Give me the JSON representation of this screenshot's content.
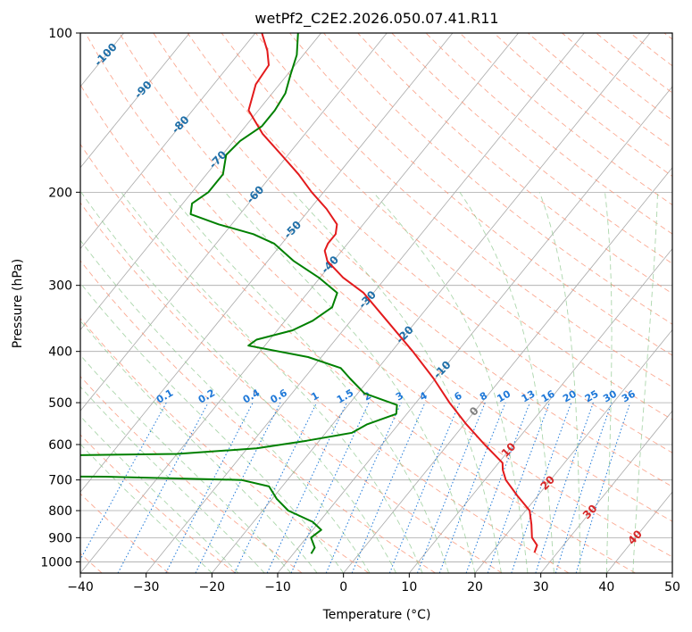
{
  "chart_data": {
    "type": "line",
    "subtype": "skew-t log-p diagram",
    "title": "wetPf2_C2E2.2026.050.07.41.R11",
    "xlabel": "Temperature (°C)",
    "ylabel": "Pressure (hPa)",
    "xlim": [
      -40,
      50
    ],
    "ylim": [
      1050,
      100
    ],
    "y_scale": "log",
    "x_ticks": [
      -40,
      -30,
      -20,
      -10,
      0,
      10,
      20,
      30,
      40,
      50
    ],
    "y_ticks": [
      100,
      200,
      300,
      400,
      500,
      600,
      700,
      800,
      900,
      1000
    ],
    "grid": true,
    "series": [
      {
        "name": "",
        "role": "temperature",
        "color": "#e31a1c",
        "points": [
          {
            "p": 960,
            "t": 26.5
          },
          {
            "p": 930,
            "t": 26.0
          },
          {
            "p": 900,
            "t": 24.3
          },
          {
            "p": 850,
            "t": 22.6
          },
          {
            "p": 800,
            "t": 20.6
          },
          {
            "p": 750,
            "t": 16.9
          },
          {
            "p": 700,
            "t": 13.2
          },
          {
            "p": 670,
            "t": 11.5
          },
          {
            "p": 650,
            "t": 10.6
          },
          {
            "p": 600,
            "t": 5.6
          },
          {
            "p": 550,
            "t": 0.4
          },
          {
            "p": 500,
            "t": -4.9
          },
          {
            "p": 450,
            "t": -10.3
          },
          {
            "p": 400,
            "t": -16.8
          },
          {
            "p": 350,
            "t": -24.5
          },
          {
            "p": 310,
            "t": -31.5
          },
          {
            "p": 290,
            "t": -36.5
          },
          {
            "p": 270,
            "t": -40.9
          },
          {
            "p": 258,
            "t": -42.6
          },
          {
            "p": 250,
            "t": -43.0
          },
          {
            "p": 240,
            "t": -43.0
          },
          {
            "p": 230,
            "t": -44.0
          },
          {
            "p": 215,
            "t": -47.5
          },
          {
            "p": 200,
            "t": -51.8
          },
          {
            "p": 185,
            "t": -56.0
          },
          {
            "p": 170,
            "t": -61.0
          },
          {
            "p": 155,
            "t": -66.5
          },
          {
            "p": 140,
            "t": -71.5
          },
          {
            "p": 125,
            "t": -73.6
          },
          {
            "p": 115,
            "t": -74.0
          },
          {
            "p": 108,
            "t": -76.0
          },
          {
            "p": 100,
            "t": -79.0
          }
        ]
      },
      {
        "name": "",
        "role": "dewpoint",
        "color": "#008000",
        "points": [
          {
            "p": 965,
            "t": -7.3
          },
          {
            "p": 940,
            "t": -7.5
          },
          {
            "p": 900,
            "t": -9.3
          },
          {
            "p": 870,
            "t": -8.7
          },
          {
            "p": 840,
            "t": -11.0
          },
          {
            "p": 800,
            "t": -16.1
          },
          {
            "p": 760,
            "t": -19.3
          },
          {
            "p": 720,
            "t": -22.0
          },
          {
            "p": 700,
            "t": -27.0
          },
          {
            "p": 690,
            "t": -48.0
          },
          {
            "p": 686,
            "t": -82.0
          },
          {
            "p": 632,
            "t": -70.0
          },
          {
            "p": 625,
            "t": -40.0
          },
          {
            "p": 610,
            "t": -28.6
          },
          {
            "p": 590,
            "t": -21.9
          },
          {
            "p": 570,
            "t": -16.0
          },
          {
            "p": 550,
            "t": -14.8
          },
          {
            "p": 525,
            "t": -11.6
          },
          {
            "p": 505,
            "t": -12.6
          },
          {
            "p": 480,
            "t": -19.0
          },
          {
            "p": 450,
            "t": -23.0
          },
          {
            "p": 430,
            "t": -25.7
          },
          {
            "p": 410,
            "t": -32.0
          },
          {
            "p": 390,
            "t": -42.5
          },
          {
            "p": 380,
            "t": -42.0
          },
          {
            "p": 365,
            "t": -37.7
          },
          {
            "p": 350,
            "t": -35.8
          },
          {
            "p": 330,
            "t": -34.5
          },
          {
            "p": 310,
            "t": -35.5
          },
          {
            "p": 290,
            "t": -40.2
          },
          {
            "p": 270,
            "t": -46.0
          },
          {
            "p": 250,
            "t": -51.2
          },
          {
            "p": 240,
            "t": -55.5
          },
          {
            "p": 230,
            "t": -62.0
          },
          {
            "p": 220,
            "t": -67.5
          },
          {
            "p": 210,
            "t": -68.6
          },
          {
            "p": 200,
            "t": -67.5
          },
          {
            "p": 185,
            "t": -67.5
          },
          {
            "p": 170,
            "t": -69.4
          },
          {
            "p": 160,
            "t": -69.0
          },
          {
            "p": 150,
            "t": -67.5
          },
          {
            "p": 140,
            "t": -67.5
          },
          {
            "p": 130,
            "t": -68.0
          },
          {
            "p": 120,
            "t": -69.5
          },
          {
            "p": 110,
            "t": -71.0
          },
          {
            "p": 100,
            "t": -73.5
          }
        ]
      }
    ],
    "isotherm_labels": [
      -100,
      -90,
      -80,
      -70,
      -60,
      -50,
      -40,
      -30,
      -20,
      -10,
      0,
      10,
      20,
      30,
      40
    ],
    "mixing_ratio_labels": [
      "0.1",
      "0.2",
      "0.4",
      "0.6",
      "1",
      "1.5",
      "2",
      "3",
      "4",
      "6",
      "8",
      "10",
      "13",
      "16",
      "20",
      "25",
      "30",
      "36"
    ],
    "colors": {
      "temperature_line": "#e31a1c",
      "dewpoint_line": "#008000",
      "isotherm": "#a9a9a9",
      "dry_adiabat": "#fa8c6e",
      "moist_adiabat": "#90c890",
      "mixing_ratio": "#1e78d8",
      "isotherm_label_cold": "#1f6fa8",
      "isotherm_label_warm": "#d62728",
      "isotherm_label_zero": "#808080"
    }
  }
}
